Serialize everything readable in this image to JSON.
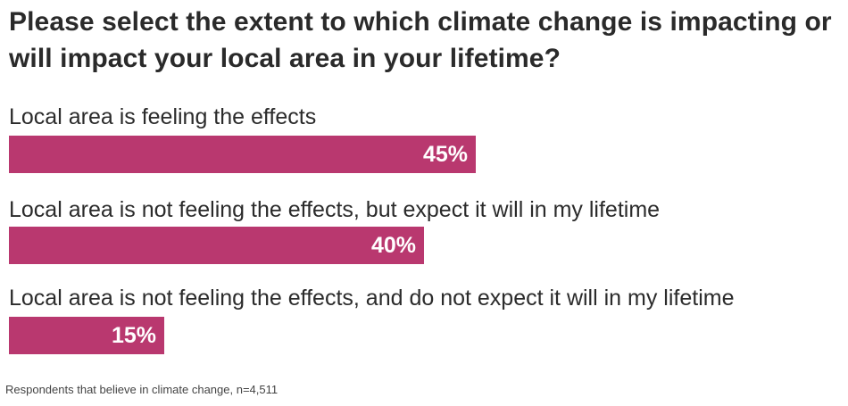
{
  "chart_data": {
    "type": "bar",
    "orientation": "horizontal",
    "title": "Please select the extent to which climate change is impacting or will impact your local area in your lifetime?",
    "categories": [
      "Local area is feeling the effects",
      "Local area is not feeling the effects, but expect it will in my lifetime",
      "Local area is not feeling the effects, and do not expect it will in my lifetime"
    ],
    "values": [
      45,
      40,
      15
    ],
    "value_labels": [
      "45%",
      "40%",
      "15%"
    ],
    "unit": "%",
    "xlim": [
      0,
      100
    ],
    "grid": false,
    "legend": "none",
    "bar_color": "#b9386f",
    "footnote": "Respondents that believe in climate change, n=4,511"
  }
}
